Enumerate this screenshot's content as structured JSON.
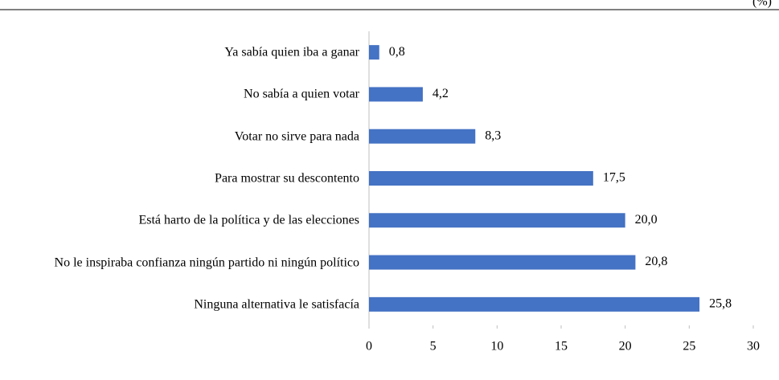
{
  "chart_data": {
    "type": "bar",
    "orientation": "horizontal",
    "note": "(%)",
    "categories": [
      "Ya sabía quien iba a ganar",
      "No sabía a quien votar",
      "Votar no sirve para nada",
      "Para mostrar su descontento",
      "Está harto de la política y de las elecciones",
      "No le inspiraba confianza ningún partido ni ningún político",
      "Ninguna alternativa le satisfacía"
    ],
    "values": [
      0.8,
      4.2,
      8.3,
      17.5,
      20.0,
      20.8,
      25.8
    ],
    "value_labels": [
      "0,8",
      "4,2",
      "8,3",
      "17,5",
      "20,0",
      "20,8",
      "25,8"
    ],
    "color": "#4472c4",
    "xlim": [
      0,
      30
    ],
    "xticks": [
      0,
      5,
      10,
      15,
      20,
      25,
      30
    ],
    "grid": false
  }
}
